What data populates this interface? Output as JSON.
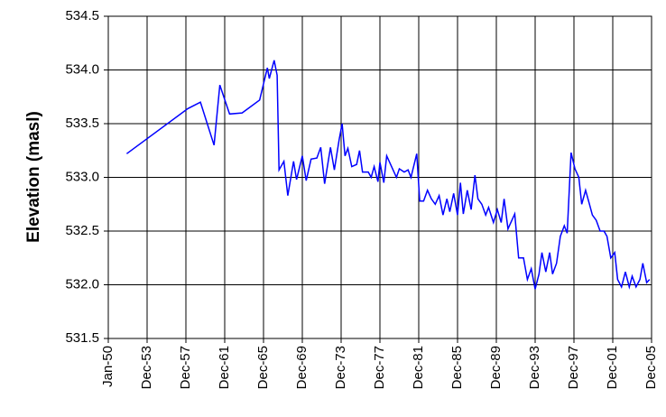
{
  "chart_data": {
    "type": "line",
    "y_label": "Elevation (masl)",
    "xlim": [
      1950,
      2006
    ],
    "xticks": [
      {
        "value": 1950,
        "label": "Jan-50"
      },
      {
        "value": 1954,
        "label": "Dec-53"
      },
      {
        "value": 1958,
        "label": "Dec-57"
      },
      {
        "value": 1962,
        "label": "Dec-61"
      },
      {
        "value": 1966,
        "label": "Dec-65"
      },
      {
        "value": 1970,
        "label": "Dec-69"
      },
      {
        "value": 1974,
        "label": "Dec-73"
      },
      {
        "value": 1978,
        "label": "Dec-77"
      },
      {
        "value": 1982,
        "label": "Dec-81"
      },
      {
        "value": 1986,
        "label": "Dec-85"
      },
      {
        "value": 1990,
        "label": "Dec-89"
      },
      {
        "value": 1994,
        "label": "Dec-93"
      },
      {
        "value": 1998,
        "label": "Dec-97"
      },
      {
        "value": 2002,
        "label": "Dec-01"
      },
      {
        "value": 2006,
        "label": "Dec-05"
      }
    ],
    "ylim": [
      531.5,
      534.5
    ],
    "yticks": [
      531.5,
      {
        "value": 532,
        "label": "532.0"
      },
      532.5,
      {
        "value": 533,
        "label": "533.0"
      },
      533.5,
      {
        "value": 534,
        "label": "534.0"
      },
      534.5
    ],
    "grid": true,
    "x": [
      1951.9,
      1958.2,
      1959.5,
      1960.9,
      1961.5,
      1962.5,
      1963.8,
      1965.6,
      1966.4,
      1966.6,
      1967.1,
      1967.4,
      1967.6,
      1968.1,
      1968.5,
      1969.1,
      1969.4,
      1970.0,
      1970.4,
      1970.9,
      1971.5,
      1971.9,
      1972.3,
      1972.9,
      1973.3,
      1973.8,
      1974.1,
      1974.4,
      1974.7,
      1975.1,
      1975.6,
      1975.9,
      1976.2,
      1976.8,
      1977.1,
      1977.4,
      1977.8,
      1978.0,
      1978.4,
      1978.7,
      1979.2,
      1979.7,
      1980.0,
      1980.5,
      1980.9,
      1981.2,
      1981.8,
      1982.1,
      1982.5,
      1982.9,
      1983.3,
      1983.7,
      1984.1,
      1984.5,
      1984.9,
      1985.2,
      1985.6,
      1986.0,
      1986.3,
      1986.6,
      1987.0,
      1987.4,
      1987.8,
      1988.1,
      1988.5,
      1988.9,
      1989.2,
      1989.7,
      1990.1,
      1990.5,
      1990.8,
      1991.2,
      1991.6,
      1991.9,
      1992.3,
      1992.8,
      1993.2,
      1993.6,
      1994.0,
      1994.4,
      1994.7,
      1995.1,
      1995.5,
      1995.8,
      1996.2,
      1996.6,
      1997.0,
      1997.3,
      1997.7,
      1998.1,
      1998.5,
      1998.8,
      1999.2,
      1999.6,
      1999.9,
      2000.3,
      2000.7,
      2001.1,
      2001.4,
      2001.8,
      2002.2,
      2002.5,
      2002.9,
      2003.3,
      2003.7,
      2004.0,
      2004.4,
      2004.8,
      2005.1,
      2005.5,
      2005.8
    ],
    "series": [
      {
        "color": "#0000ff",
        "values": [
          533.22,
          533.64,
          533.7,
          533.3,
          533.86,
          533.59,
          533.6,
          533.72,
          534.02,
          533.92,
          534.09,
          533.95,
          533.07,
          533.15,
          532.83,
          533.15,
          532.98,
          533.2,
          532.97,
          533.17,
          533.18,
          533.28,
          532.94,
          533.28,
          533.07,
          533.35,
          533.5,
          533.2,
          533.27,
          533.1,
          533.12,
          533.25,
          533.05,
          533.05,
          533.0,
          533.1,
          532.96,
          533.14,
          532.95,
          533.2,
          533.1,
          533.0,
          533.08,
          533.05,
          533.07,
          533.0,
          533.22,
          532.78,
          532.78,
          532.88,
          532.8,
          532.75,
          532.83,
          532.65,
          532.8,
          532.68,
          532.85,
          532.65,
          532.95,
          532.66,
          532.88,
          532.7,
          533.02,
          532.8,
          532.75,
          532.65,
          532.72,
          532.58,
          532.7,
          532.58,
          532.8,
          532.52,
          532.6,
          532.66,
          532.25,
          532.25,
          532.05,
          532.15,
          531.96,
          532.1,
          532.3,
          532.12,
          532.3,
          532.1,
          532.2,
          532.45,
          532.55,
          532.48,
          533.23,
          533.08,
          533.0,
          532.75,
          532.88,
          532.75,
          532.65,
          532.6,
          532.5,
          532.5,
          532.45,
          532.25,
          532.3,
          532.05,
          531.98,
          532.12,
          531.98,
          532.08,
          531.98,
          532.05,
          532.2,
          532.02,
          532.05
        ]
      }
    ]
  }
}
